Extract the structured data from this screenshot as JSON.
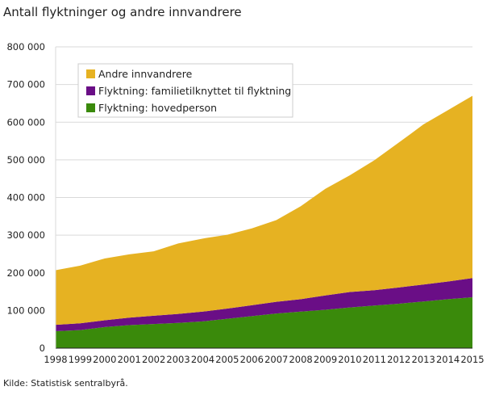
{
  "title": "Antall flyktninger og andre innvandrere",
  "source": "Kilde: Statistisk sentralbyrå.",
  "chart_data": {
    "type": "area",
    "stacked": true,
    "categories": [
      "1998",
      "1999",
      "2000",
      "2001",
      "2002",
      "2003",
      "2004",
      "2005",
      "2006",
      "2007",
      "2008",
      "2009",
      "2010",
      "2011",
      "2012",
      "2013",
      "2014",
      "2015"
    ],
    "series": [
      {
        "name": "Flyktning: hovedperson",
        "color": "#3a8a0b",
        "values": [
          45000,
          48000,
          56000,
          61000,
          64000,
          67000,
          71000,
          78000,
          85000,
          92000,
          97000,
          102000,
          108000,
          113000,
          118000,
          124000,
          130000,
          135000
        ]
      },
      {
        "name": "Flyktning: familietilknyttet til flyktning",
        "color": "#6a0e86",
        "values": [
          17000,
          18000,
          18000,
          20000,
          22000,
          24000,
          26000,
          27000,
          29000,
          31000,
          33000,
          38000,
          41000,
          41000,
          43000,
          45000,
          47000,
          51000
        ]
      },
      {
        "name": "Andre innvandrere",
        "color": "#e6b222",
        "values": [
          145000,
          153000,
          164000,
          168000,
          171000,
          187000,
          194000,
          196000,
          204000,
          217000,
          247000,
          283000,
          310000,
          345000,
          385000,
          425000,
          455000,
          484000
        ]
      }
    ],
    "legend_order": [
      "Andre innvandrere",
      "Flyktning: familietilknyttet til flyktning",
      "Flyktning: hovedperson"
    ],
    "yticks": [
      "0",
      "100 000",
      "200 000",
      "300 000",
      "400 000",
      "500 000",
      "600 000",
      "700 000",
      "800 000"
    ],
    "ylim": [
      0,
      800000
    ],
    "grid": true,
    "legend_position": "top-left"
  }
}
